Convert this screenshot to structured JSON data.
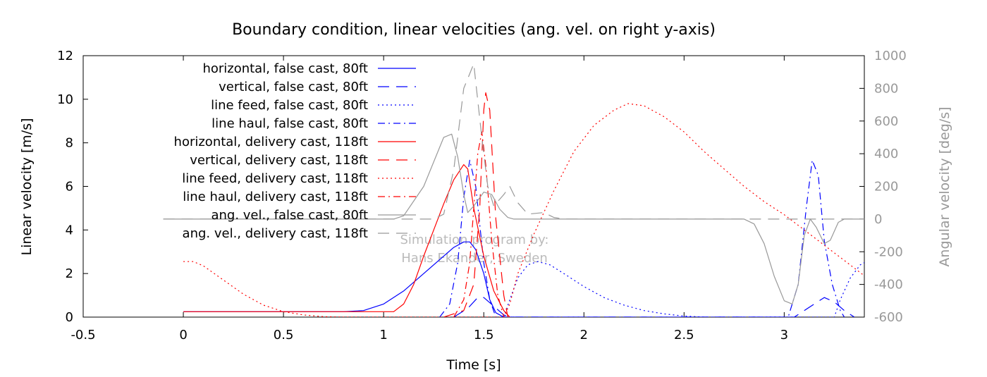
{
  "chart_data": {
    "type": "line",
    "title": "Boundary condition, linear velocities (ang. vel. on right y-axis)",
    "xlabel": "Time [s]",
    "ylabel": "Linear velocity [m/s]",
    "y2label": "Angular velocity [deg/s]",
    "xlim": [
      -0.5,
      3.4
    ],
    "ylim": [
      0,
      12
    ],
    "y2lim": [
      -600,
      1000
    ],
    "xticks": [
      "-0.5",
      "0",
      "0.5",
      "1",
      "1.5",
      "2",
      "2.5",
      "3"
    ],
    "xtick_values": [
      -0.5,
      0,
      0.5,
      1,
      1.5,
      2,
      2.5,
      3
    ],
    "yticks": [
      "0",
      "2",
      "4",
      "6",
      "8",
      "10",
      "12"
    ],
    "ytick_values": [
      0,
      2,
      4,
      6,
      8,
      10,
      12
    ],
    "y2ticks": [
      "-600",
      "-400",
      "-200",
      "0",
      "200",
      "400",
      "600",
      "800",
      "1000"
    ],
    "y2tick_values": [
      -600,
      -400,
      -200,
      0,
      200,
      400,
      600,
      800,
      1000
    ],
    "grid": false,
    "legend_position": "top-left",
    "annotation": [
      "Simulation program by:",
      "Hans Ekander, Sweden"
    ],
    "colors": {
      "false_cast": "#0000ff",
      "delivery_cast": "#ff0000",
      "angular": "#999999"
    },
    "series": [
      {
        "name": "horizontal, false cast, 80ft",
        "axis": "left",
        "color": "#0000ff",
        "dash": "solid",
        "points": [
          [
            0,
            0.25
          ],
          [
            0.8,
            0.25
          ],
          [
            0.9,
            0.3
          ],
          [
            1.0,
            0.6
          ],
          [
            1.1,
            1.2
          ],
          [
            1.2,
            2.0
          ],
          [
            1.3,
            2.8
          ],
          [
            1.35,
            3.2
          ],
          [
            1.4,
            3.45
          ],
          [
            1.43,
            3.45
          ],
          [
            1.46,
            3.1
          ],
          [
            1.5,
            2.0
          ],
          [
            1.53,
            0.8
          ],
          [
            1.56,
            0.2
          ],
          [
            1.6,
            0
          ],
          [
            1.65,
            0
          ]
        ]
      },
      {
        "name": "vertical, false cast, 80ft",
        "axis": "left",
        "color": "#0000ff",
        "dash": "long",
        "points": [
          [
            1.35,
            0
          ],
          [
            1.42,
            0.4
          ],
          [
            1.47,
            0.9
          ],
          [
            1.5,
            0.9
          ],
          [
            1.55,
            0.5
          ],
          [
            1.6,
            0.1
          ],
          [
            1.63,
            0
          ],
          [
            3.05,
            0
          ],
          [
            3.15,
            0.6
          ],
          [
            3.2,
            0.9
          ],
          [
            3.25,
            0.7
          ],
          [
            3.3,
            0.3
          ],
          [
            3.35,
            0
          ]
        ]
      },
      {
        "name": "line feed, false cast, 80ft",
        "axis": "left",
        "color": "#0000ff",
        "dash": "dot",
        "points": [
          [
            1.6,
            0
          ],
          [
            1.63,
            0.8
          ],
          [
            1.67,
            1.8
          ],
          [
            1.72,
            2.4
          ],
          [
            1.77,
            2.55
          ],
          [
            1.83,
            2.4
          ],
          [
            1.9,
            2.0
          ],
          [
            2.0,
            1.4
          ],
          [
            2.1,
            0.9
          ],
          [
            2.2,
            0.55
          ],
          [
            2.3,
            0.3
          ],
          [
            2.4,
            0.15
          ],
          [
            2.5,
            0.05
          ],
          [
            2.6,
            0
          ],
          [
            3.25,
            0
          ],
          [
            3.28,
            0.8
          ],
          [
            3.33,
            1.8
          ],
          [
            3.38,
            2.4
          ],
          [
            3.4,
            2.5
          ]
        ]
      },
      {
        "name": "line haul, false cast, 80ft",
        "axis": "left",
        "color": "#0000ff",
        "dash": "dashdot",
        "points": [
          [
            1.28,
            0
          ],
          [
            1.33,
            0.6
          ],
          [
            1.37,
            2.5
          ],
          [
            1.4,
            5.5
          ],
          [
            1.43,
            7.2
          ],
          [
            1.46,
            6.0
          ],
          [
            1.5,
            2.5
          ],
          [
            1.53,
            0.8
          ],
          [
            1.56,
            0
          ],
          [
            3.02,
            0
          ],
          [
            3.07,
            1.5
          ],
          [
            3.11,
            5.0
          ],
          [
            3.14,
            7.2
          ],
          [
            3.17,
            6.5
          ],
          [
            3.2,
            3.5
          ],
          [
            3.24,
            1.5
          ],
          [
            3.28,
            0.3
          ],
          [
            3.3,
            0
          ]
        ]
      },
      {
        "name": "horizontal, delivery cast, 118ft",
        "axis": "left",
        "color": "#ff0000",
        "dash": "solid",
        "points": [
          [
            0,
            0.25
          ],
          [
            1.05,
            0.25
          ],
          [
            1.1,
            0.6
          ],
          [
            1.15,
            1.5
          ],
          [
            1.2,
            2.8
          ],
          [
            1.25,
            4.0
          ],
          [
            1.3,
            5.2
          ],
          [
            1.35,
            6.3
          ],
          [
            1.4,
            7.0
          ],
          [
            1.42,
            6.8
          ],
          [
            1.45,
            5.0
          ],
          [
            1.5,
            2.8
          ],
          [
            1.55,
            1.2
          ],
          [
            1.6,
            0.3
          ],
          [
            1.63,
            0
          ]
        ]
      },
      {
        "name": "vertical, delivery cast, 118ft",
        "axis": "left",
        "color": "#ff0000",
        "dash": "long",
        "points": [
          [
            1.3,
            0
          ],
          [
            1.4,
            0.3
          ],
          [
            1.45,
            1.5
          ],
          [
            1.48,
            5.0
          ],
          [
            1.5,
            9.5
          ],
          [
            1.51,
            10.3
          ],
          [
            1.53,
            9.5
          ],
          [
            1.56,
            4.5
          ],
          [
            1.6,
            1.0
          ],
          [
            1.62,
            0
          ]
        ]
      },
      {
        "name": "line feed, delivery cast, 118ft",
        "axis": "left",
        "color": "#ff0000",
        "dash": "dot",
        "points": [
          [
            0,
            2.55
          ],
          [
            0.05,
            2.55
          ],
          [
            0.1,
            2.35
          ],
          [
            0.2,
            1.7
          ],
          [
            0.3,
            1.05
          ],
          [
            0.4,
            0.55
          ],
          [
            0.5,
            0.25
          ],
          [
            0.6,
            0.1
          ],
          [
            0.7,
            0.02
          ],
          [
            0.8,
            0
          ],
          [
            1.6,
            0
          ],
          [
            1.63,
            0.6
          ],
          [
            1.67,
            2.0
          ],
          [
            1.75,
            3.8
          ],
          [
            1.85,
            5.8
          ],
          [
            1.95,
            7.6
          ],
          [
            2.05,
            8.8
          ],
          [
            2.15,
            9.5
          ],
          [
            2.22,
            9.8
          ],
          [
            2.3,
            9.7
          ],
          [
            2.4,
            9.2
          ],
          [
            2.5,
            8.5
          ],
          [
            2.6,
            7.6
          ],
          [
            2.7,
            6.8
          ],
          [
            2.8,
            6.0
          ],
          [
            2.9,
            5.3
          ],
          [
            3.0,
            4.7
          ],
          [
            3.1,
            4.0
          ],
          [
            3.2,
            3.3
          ],
          [
            3.3,
            2.6
          ],
          [
            3.4,
            1.9
          ]
        ]
      },
      {
        "name": "line haul, delivery cast, 118ft",
        "axis": "left",
        "color": "#ff0000",
        "dash": "dashdot",
        "points": [
          [
            1.35,
            0
          ],
          [
            1.4,
            0.8
          ],
          [
            1.43,
            2.5
          ],
          [
            1.45,
            5.0
          ],
          [
            1.47,
            7.5
          ],
          [
            1.49,
            8.5
          ],
          [
            1.51,
            7.0
          ],
          [
            1.54,
            3.5
          ],
          [
            1.57,
            1.0
          ],
          [
            1.6,
            0
          ]
        ]
      },
      {
        "name": "ang. vel., false cast, 80ft",
        "axis": "right",
        "color": "#999999",
        "dash": "solid",
        "points": [
          [
            -0.1,
            0
          ],
          [
            1.05,
            0
          ],
          [
            1.1,
            20
          ],
          [
            1.2,
            200
          ],
          [
            1.3,
            500
          ],
          [
            1.34,
            520
          ],
          [
            1.37,
            380
          ],
          [
            1.4,
            150
          ],
          [
            1.42,
            40
          ],
          [
            1.45,
            80
          ],
          [
            1.5,
            165
          ],
          [
            1.54,
            150
          ],
          [
            1.58,
            60
          ],
          [
            1.62,
            10
          ],
          [
            1.65,
            0
          ],
          [
            2.8,
            0
          ],
          [
            2.85,
            -30
          ],
          [
            2.9,
            -150
          ],
          [
            2.95,
            -350
          ],
          [
            3.0,
            -500
          ],
          [
            3.04,
            -520
          ],
          [
            3.07,
            -400
          ],
          [
            3.1,
            -100
          ],
          [
            3.13,
            0
          ],
          [
            3.16,
            -50
          ],
          [
            3.2,
            -150
          ],
          [
            3.23,
            -130
          ],
          [
            3.27,
            -20
          ],
          [
            3.3,
            0
          ],
          [
            3.4,
            0
          ]
        ]
      },
      {
        "name": "ang. vel., delivery cast, 118ft",
        "axis": "right",
        "color": "#999999",
        "dash": "long",
        "points": [
          [
            -0.1,
            0
          ],
          [
            1.25,
            0
          ],
          [
            1.3,
            30
          ],
          [
            1.35,
            300
          ],
          [
            1.4,
            800
          ],
          [
            1.45,
            950
          ],
          [
            1.49,
            500
          ],
          [
            1.52,
            200
          ],
          [
            1.55,
            80
          ],
          [
            1.6,
            150
          ],
          [
            1.63,
            200
          ],
          [
            1.67,
            100
          ],
          [
            1.72,
            30
          ],
          [
            1.8,
            40
          ],
          [
            1.85,
            10
          ],
          [
            1.9,
            0
          ],
          [
            3.4,
            0
          ]
        ]
      }
    ]
  }
}
